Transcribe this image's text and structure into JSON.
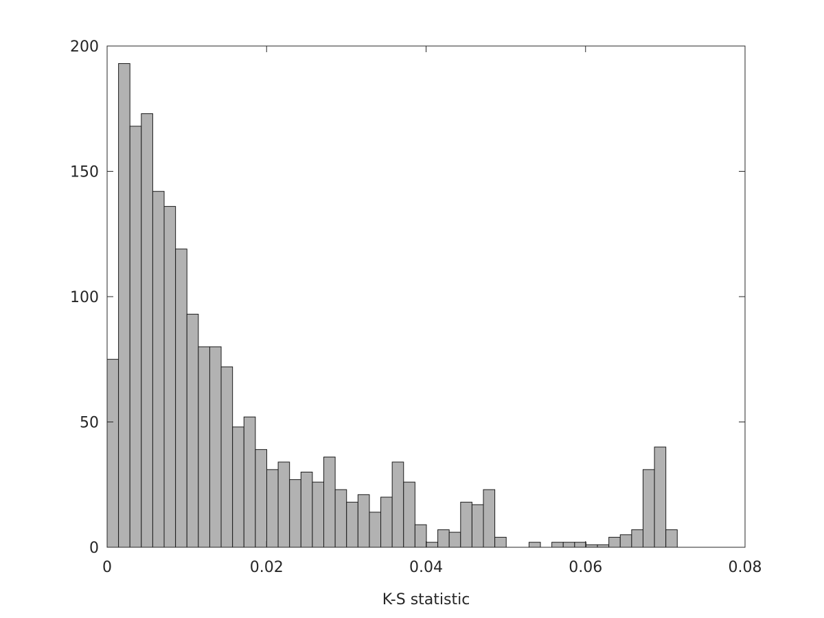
{
  "chart_data": {
    "type": "histogram",
    "x_label": "K-S statistic",
    "bins": [
      0,
      0.00143,
      0.00286,
      0.00429,
      0.00572,
      0.00715,
      0.00858,
      0.01001,
      0.01144,
      0.01287,
      0.0143,
      0.01573,
      0.01716,
      0.01859,
      0.02002,
      0.02145,
      0.02288,
      0.02431,
      0.02574,
      0.02717,
      0.0286,
      0.03003,
      0.03146,
      0.03289,
      0.03432,
      0.03575,
      0.03718,
      0.03861,
      0.04004,
      0.04147,
      0.0429,
      0.04433,
      0.04576,
      0.04719,
      0.04862,
      0.05005,
      0.05148,
      0.05291,
      0.05434,
      0.05577,
      0.0572,
      0.05863,
      0.06006,
      0.06149,
      0.06292,
      0.06435,
      0.06578,
      0.06721,
      0.06864,
      0.07007,
      0.0715
    ],
    "counts": [
      75,
      193,
      168,
      173,
      142,
      136,
      119,
      93,
      80,
      80,
      72,
      48,
      52,
      39,
      31,
      34,
      27,
      30,
      26,
      36,
      23,
      18,
      21,
      14,
      20,
      34,
      26,
      9,
      2,
      7,
      6,
      18,
      17,
      23,
      4,
      0,
      0,
      2,
      0,
      2,
      2,
      2,
      1,
      1,
      4,
      5,
      7,
      31,
      40,
      7
    ],
    "color": "#b2b2b2",
    "xlim": [
      0,
      0.08
    ],
    "xticks": [
      0,
      0.02,
      0.04,
      0.06,
      0.08
    ],
    "ylim": [
      0,
      200
    ],
    "yticks": [
      0,
      50,
      100,
      150,
      200
    ]
  }
}
